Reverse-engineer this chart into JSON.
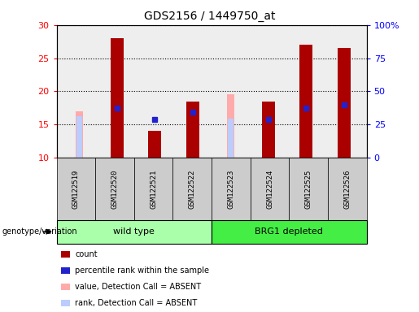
{
  "title": "GDS2156 / 1449750_at",
  "samples": [
    "GSM122519",
    "GSM122520",
    "GSM122521",
    "GSM122522",
    "GSM122523",
    "GSM122524",
    "GSM122525",
    "GSM122526"
  ],
  "count_values": [
    null,
    28.0,
    14.0,
    18.5,
    null,
    18.5,
    27.0,
    26.5
  ],
  "percentile_rank": [
    null,
    17.5,
    15.7,
    16.8,
    null,
    15.8,
    17.5,
    17.9
  ],
  "absent_value": [
    17.0,
    null,
    null,
    null,
    19.5,
    null,
    null,
    null
  ],
  "absent_rank": [
    16.2,
    null,
    null,
    null,
    15.9,
    null,
    null,
    null
  ],
  "ylim": [
    10,
    30
  ],
  "yticks": [
    10,
    15,
    20,
    25,
    30
  ],
  "y2lim": [
    0,
    100
  ],
  "y2ticks": [
    0,
    25,
    50,
    75,
    100
  ],
  "y2ticklabels": [
    "0",
    "25",
    "50",
    "75",
    "100%"
  ],
  "count_color": "#aa0000",
  "percentile_color": "#2222cc",
  "absent_value_color": "#ffaaaa",
  "absent_rank_color": "#bbccff",
  "group_wt_color": "#aaffaa",
  "group_brg1_color": "#44ee44",
  "genotype_label": "genotype/variation",
  "legend_items": [
    {
      "label": "count",
      "color": "#aa0000"
    },
    {
      "label": "percentile rank within the sample",
      "color": "#2222cc"
    },
    {
      "label": "value, Detection Call = ABSENT",
      "color": "#ffaaaa"
    },
    {
      "label": "rank, Detection Call = ABSENT",
      "color": "#bbccff"
    }
  ],
  "bar_width": 0.35,
  "absent_bar_width": 0.1,
  "background_color": "#ffffff",
  "plot_bg_color": "#eeeeee",
  "label_box_color": "#cccccc",
  "grid_color": "#000000"
}
